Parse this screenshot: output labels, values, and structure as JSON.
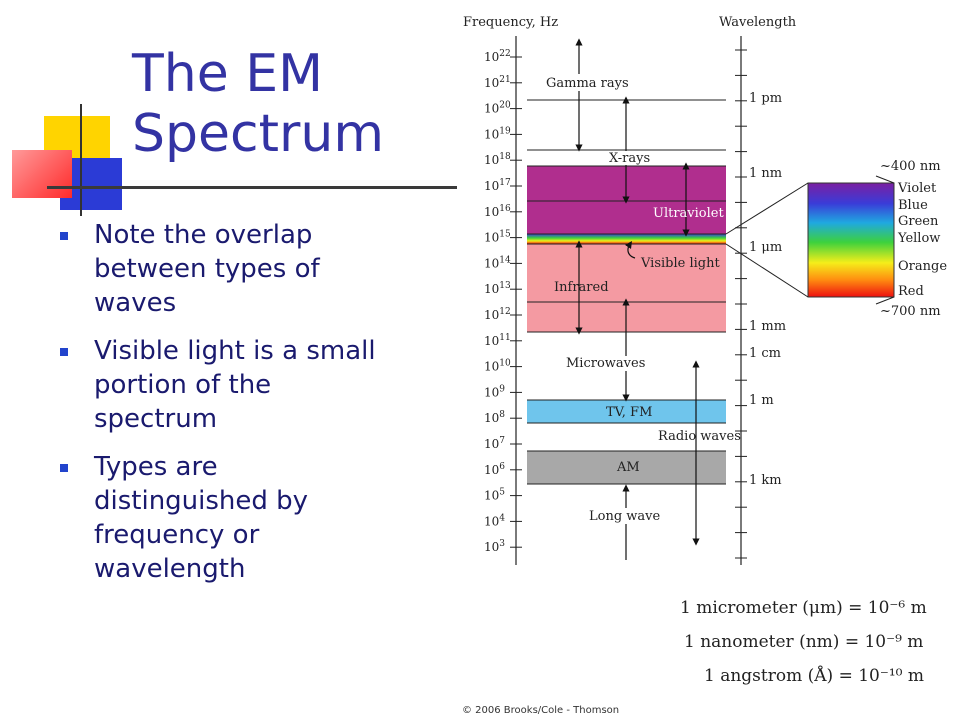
{
  "title_lines": [
    "The EM",
    "Spectrum"
  ],
  "bullets": [
    "Note the overlap between types of waves",
    "Visible light is a small portion of the spectrum",
    "Types are distinguished by frequency or wavelength"
  ],
  "diagram": {
    "freq_header": "Frequency, Hz",
    "wave_header": "Wavelength",
    "freq_exponents": [
      "22",
      "21",
      "20",
      "19",
      "18",
      "17",
      "16",
      "15",
      "14",
      "13",
      "12",
      "11",
      "10",
      "9",
      "8",
      "7",
      "6",
      "5",
      "4",
      "3"
    ],
    "wavelength_labels": [
      "1 pm",
      "1 nm",
      "1 μm",
      "1 mm",
      "1 cm",
      "1 m",
      "1 km"
    ],
    "bands": {
      "gamma": "Gamma rays",
      "xray": "X-rays",
      "uv": "Ultraviolet",
      "visible": "Visible light",
      "ir": "Infrared",
      "microwave": "Microwaves",
      "tvfm": "TV, FM",
      "radio": "Radio waves",
      "am": "AM",
      "long": "Long wave"
    },
    "visible_detail": {
      "top": "~400 nm",
      "bottom": "~700 nm",
      "colors": [
        "Violet",
        "Blue",
        "Green",
        "Yellow",
        "Orange",
        "Red"
      ]
    },
    "colors": {
      "uv_band": "#b02e8e",
      "ir_band": "#f49aa2",
      "tvfm_band": "#6fc5ec",
      "am_band": "#a8a8a8"
    }
  },
  "equations": [
    "1 micrometer (μm) = 10⁻⁶ m",
    "1 nanometer (nm) = 10⁻⁹ m",
    "1 angstrom (Å) = 10⁻¹⁰ m"
  ],
  "copyright": "© 2006 Brooks/Cole - Thomson"
}
